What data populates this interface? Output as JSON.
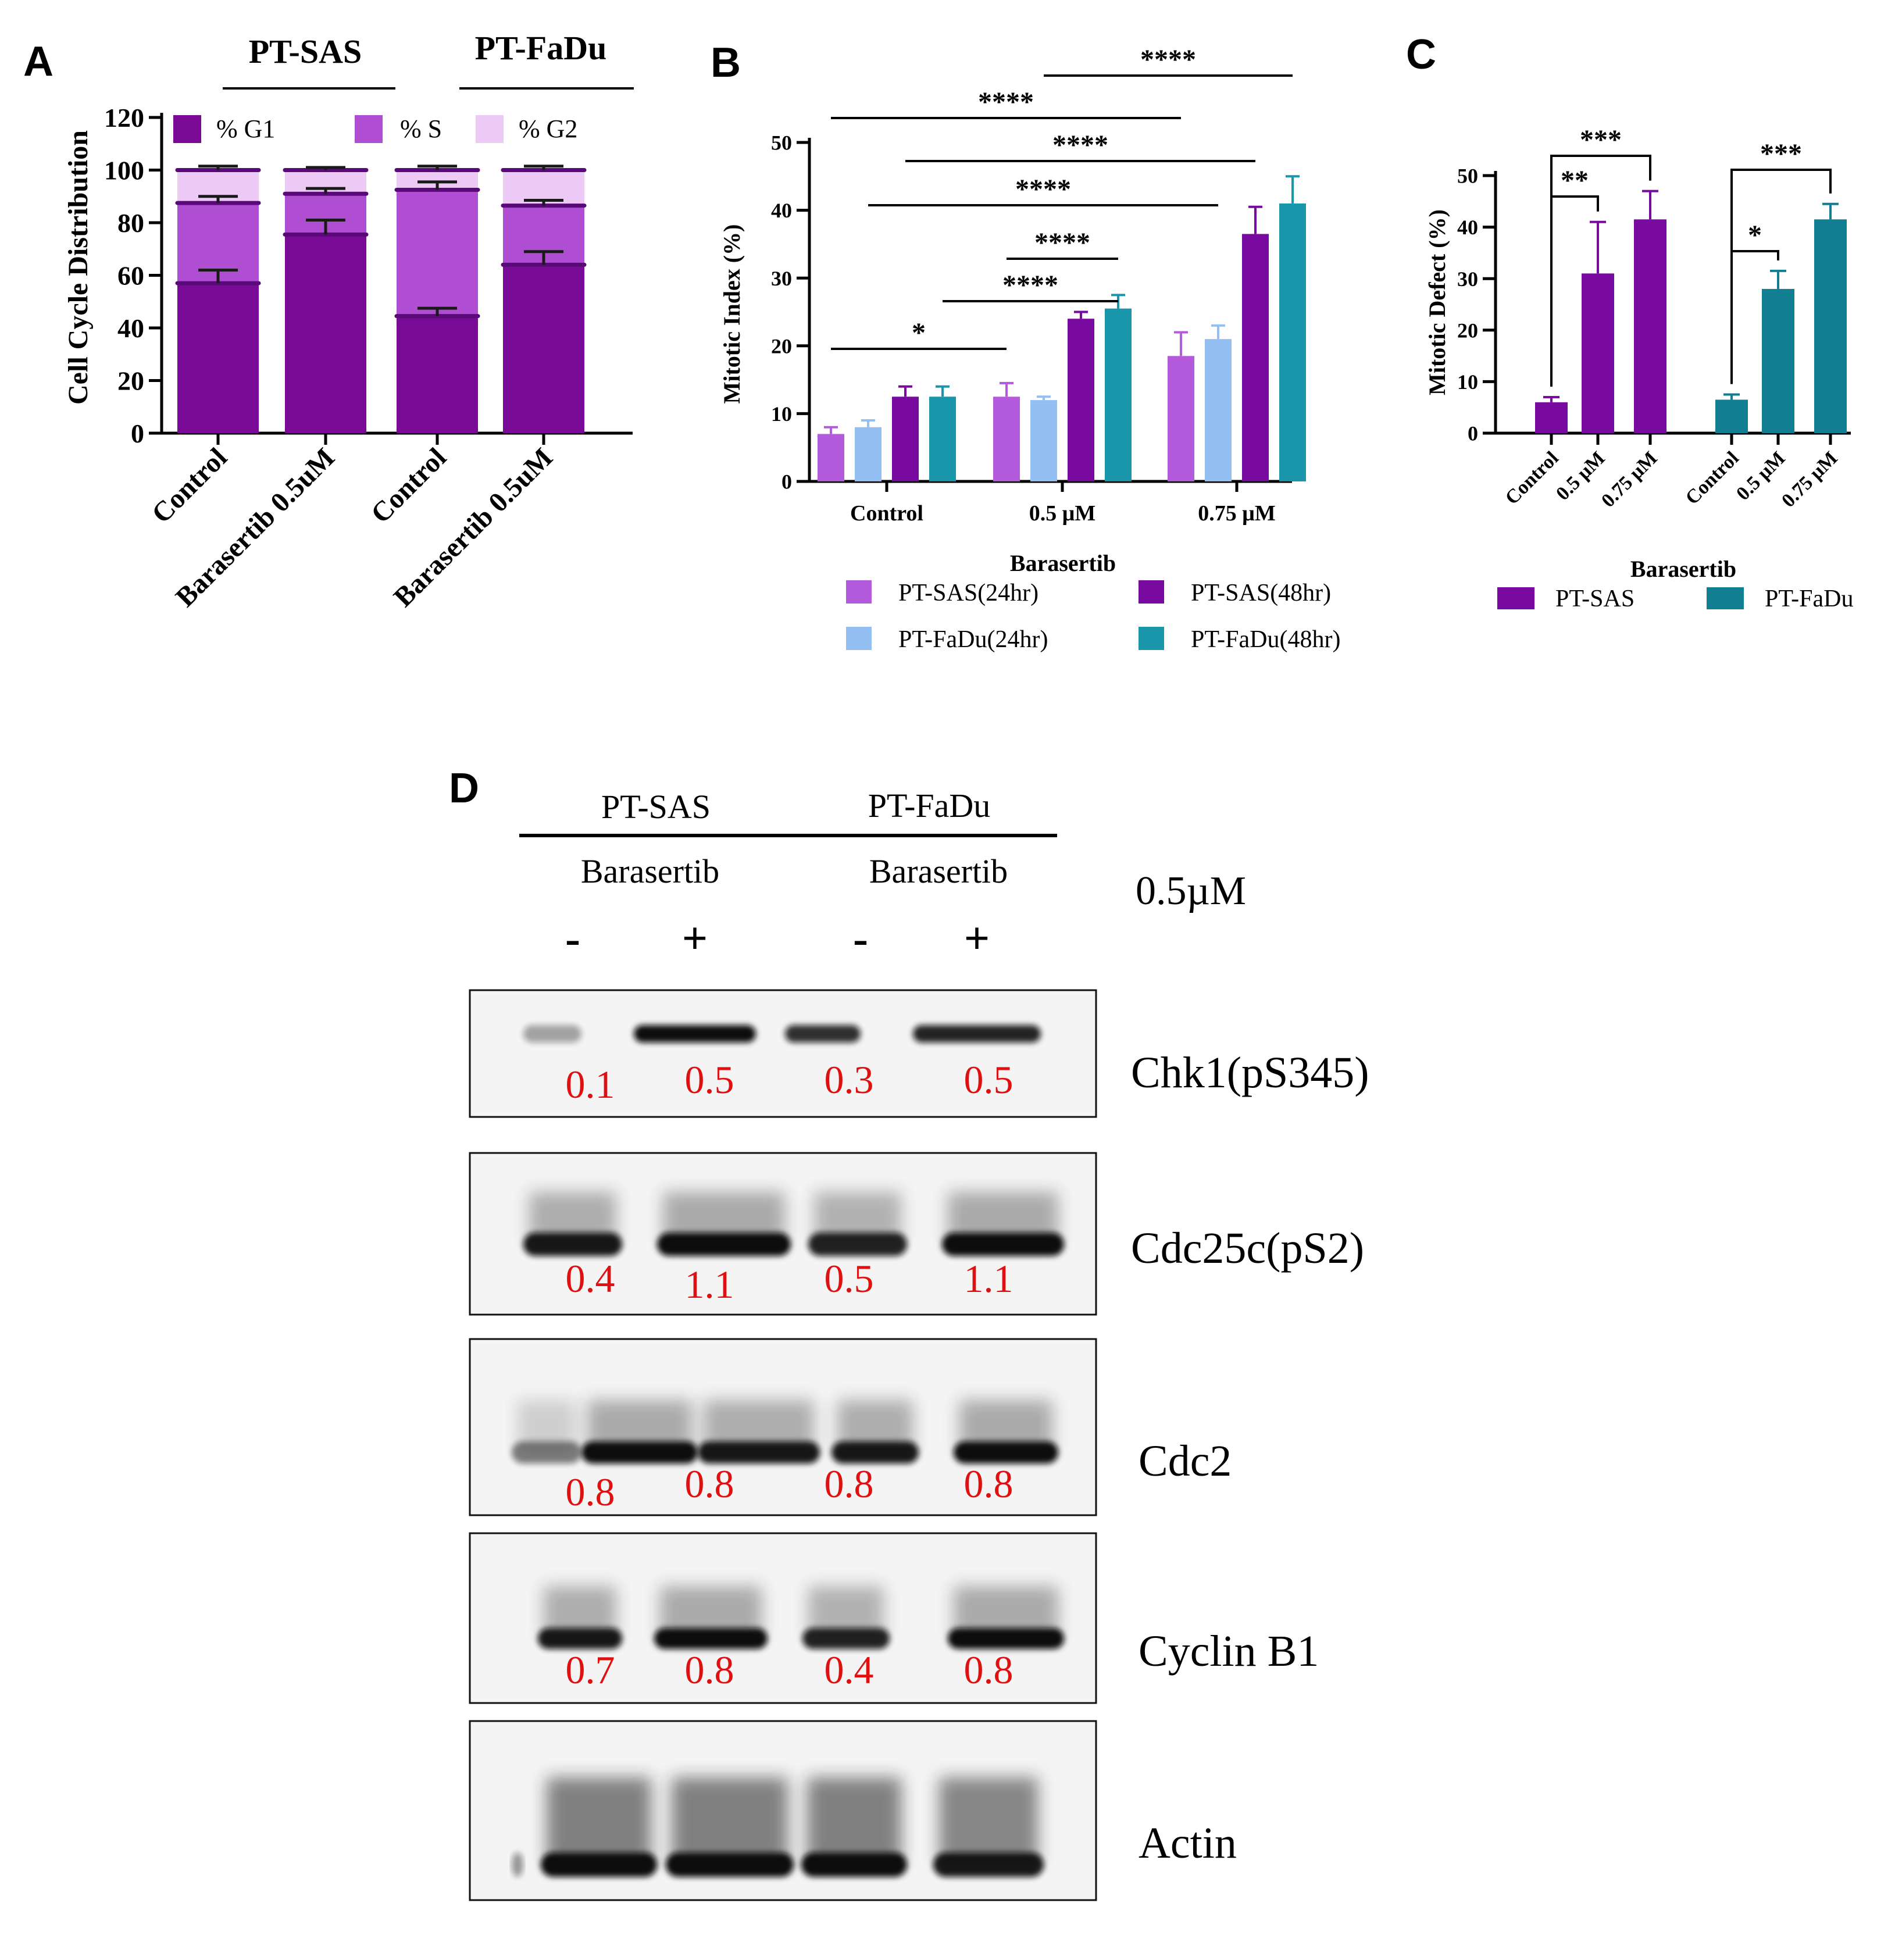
{
  "panels": {
    "a": "A",
    "b": "B",
    "c": "C",
    "d": "D"
  },
  "colors": {
    "g1": "#780a96",
    "s": "#b04ed3",
    "g2": "#eccaf5",
    "sas24": "#b35bdc",
    "fadu24": "#93bff3",
    "sas48": "#780aa0",
    "fadu48": "#1996aa",
    "c_sas": "#780aa0",
    "c_fadu": "#117f91",
    "quant": "#e01010"
  },
  "chart_data": [
    {
      "id": "A",
      "type": "bar",
      "stacked": true,
      "title": "",
      "ylabel": "Cell Cycle Distribution",
      "ylim": [
        0,
        120
      ],
      "yticks": [
        "0",
        "20",
        "40",
        "60",
        "80",
        "100",
        "120"
      ],
      "categories": [
        "Control",
        "Barasertib 0.5uM",
        "Control",
        "Barasertib 0.5uM"
      ],
      "groups": [
        {
          "label": "PT-SAS",
          "indices": [
            0,
            1
          ]
        },
        {
          "label": "PT-FaDu",
          "indices": [
            2,
            3
          ]
        }
      ],
      "series": [
        {
          "name": "% G1",
          "color_key": "g1",
          "values": [
            57,
            75.5,
            44.5,
            64
          ],
          "errors": [
            5,
            5.5,
            3,
            5
          ]
        },
        {
          "name": "% S",
          "color_key": "s",
          "values": [
            30.5,
            15.5,
            48,
            22.5
          ],
          "errors": [
            2.5,
            2,
            3,
            2
          ]
        },
        {
          "name": "% G2",
          "color_key": "g2",
          "values": [
            12.5,
            9,
            7.5,
            13.5
          ],
          "errors": [
            1.5,
            1,
            1.5,
            1.5
          ]
        }
      ]
    },
    {
      "id": "B",
      "type": "bar",
      "title": "",
      "xlabel": "Barasertib",
      "ylabel": "Mitotic Index (%)",
      "ylim": [
        0,
        50
      ],
      "yticks": [
        "0",
        "10",
        "20",
        "30",
        "40",
        "50"
      ],
      "categories": [
        "Control",
        "0.5 μM",
        "0.75 μM"
      ],
      "series": [
        {
          "name": "PT-SAS(24hr)",
          "color_key": "sas24",
          "values": [
            7,
            12.5,
            18.5
          ],
          "errors": [
            1,
            2,
            3.5
          ]
        },
        {
          "name": "PT-FaDu(24hr)",
          "color_key": "fadu24",
          "values": [
            8,
            12,
            21
          ],
          "errors": [
            1,
            0.5,
            2
          ]
        },
        {
          "name": "PT-SAS(48hr)",
          "color_key": "sas48",
          "values": [
            12.5,
            24,
            36.5
          ],
          "errors": [
            1.5,
            1,
            4
          ]
        },
        {
          "name": "PT-FaDu(48hr)",
          "color_key": "fadu48",
          "values": [
            12.5,
            25.5,
            41
          ],
          "errors": [
            1.5,
            2,
            4
          ]
        }
      ],
      "significance": [
        {
          "from": [
            0,
            0
          ],
          "to": [
            1,
            0
          ],
          "label": "*"
        },
        {
          "from": [
            0,
            3
          ],
          "to": [
            1,
            3
          ],
          "label": "****"
        },
        {
          "from": [
            1,
            0
          ],
          "to": [
            1,
            3
          ],
          "label": "****"
        },
        {
          "from": [
            0,
            1
          ],
          "to": [
            2,
            1
          ],
          "label": "****"
        },
        {
          "from": [
            0,
            2
          ],
          "to": [
            2,
            2
          ],
          "label": "****"
        },
        {
          "from": [
            0,
            0
          ],
          "to": [
            2,
            0
          ],
          "label": "****"
        },
        {
          "from": [
            1,
            1
          ],
          "to": [
            2,
            3
          ],
          "label": "****"
        }
      ]
    },
    {
      "id": "C",
      "type": "bar",
      "title": "",
      "xlabel": "Barasertib",
      "ylabel": "Mitotic Defect (%)",
      "ylim": [
        0,
        50
      ],
      "yticks": [
        "0",
        "10",
        "20",
        "30",
        "40",
        "50"
      ],
      "categories": [
        "Control",
        "0.5 μM",
        "0.75 μM"
      ],
      "series": [
        {
          "name": "PT-SAS",
          "color_key": "c_sas",
          "values": [
            6,
            31,
            41.5
          ],
          "errors": [
            1,
            10,
            5.5
          ]
        },
        {
          "name": "PT-FaDu",
          "color_key": "c_fadu",
          "values": [
            6.5,
            28,
            41.5
          ],
          "errors": [
            1,
            3.5,
            3
          ]
        }
      ],
      "significance": [
        {
          "series": 0,
          "from": 0,
          "to": 1,
          "label": "**"
        },
        {
          "series": 0,
          "from": 0,
          "to": 2,
          "label": "***"
        },
        {
          "series": 1,
          "from": 0,
          "to": 1,
          "label": "*"
        },
        {
          "series": 1,
          "from": 0,
          "to": 2,
          "label": "***"
        }
      ]
    }
  ],
  "blot": {
    "groups": [
      "PT-SAS",
      "PT-FaDu"
    ],
    "treatment": "Barasertib",
    "dose": "0.5µM",
    "lanes": [
      "-",
      "+",
      "-",
      "+"
    ],
    "rows": [
      {
        "label": "Chk1(pS345)",
        "values": [
          "0.1",
          "0.5",
          "0.3",
          "0.5"
        ]
      },
      {
        "label": "Cdc25c(pS2)",
        "values": [
          "0.4",
          "1.1",
          "0.5",
          "1.1"
        ]
      },
      {
        "label": "Cdc2",
        "values": [
          "0.8",
          "0.8",
          "0.8",
          "0.8"
        ]
      },
      {
        "label": "Cyclin B1",
        "values": [
          "0.7",
          "0.8",
          "0.4",
          "0.8"
        ]
      },
      {
        "label": "Actin",
        "values": []
      }
    ]
  }
}
